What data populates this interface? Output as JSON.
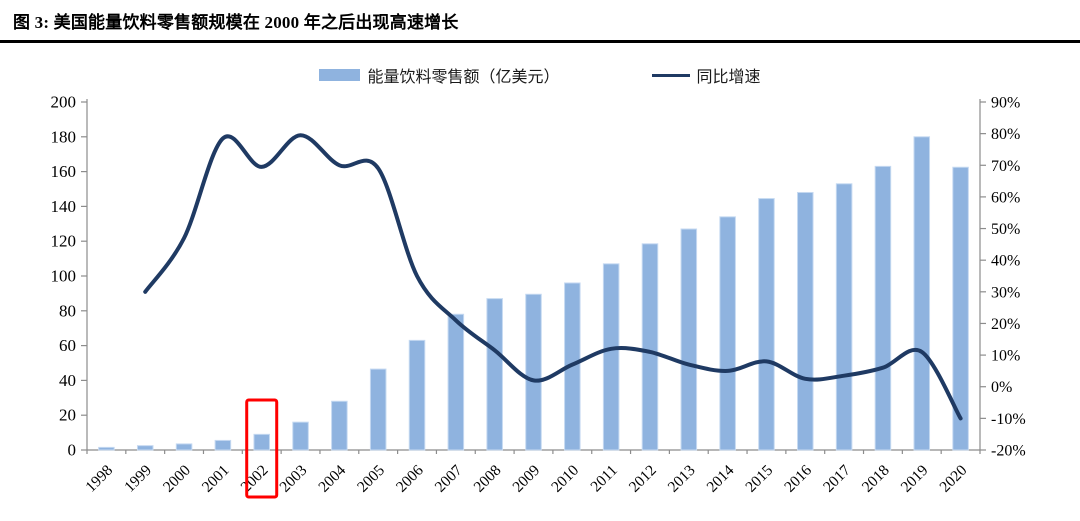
{
  "figure": {
    "title": "图 3:  美国能量饮料零售额规模在 2000 年之后出现高速增长"
  },
  "legend": {
    "bar_label": "能量饮料零售额（亿美元）",
    "line_label": "同比增速"
  },
  "colors": {
    "bar_fill": "#8FB3DF",
    "bar_edge": "#C5D9F1",
    "line": "#1F3A63",
    "axis": "#8C8C8C",
    "highlight_box": "#FF0000",
    "title_rule": "#000000"
  },
  "chart_data": {
    "type": "bar",
    "title": "",
    "categories": [
      "1998",
      "1999",
      "2000",
      "2001",
      "2002",
      "2003",
      "2004",
      "2005",
      "2006",
      "2007",
      "2008",
      "2009",
      "2010",
      "2011",
      "2012",
      "2013",
      "2014",
      "2015",
      "2016",
      "2017",
      "2018",
      "2019",
      "2020"
    ],
    "series": [
      {
        "name": "能量饮料零售额（亿美元）",
        "type": "bar",
        "axis": "left",
        "values": [
          1.5,
          2.5,
          3.5,
          5.5,
          9,
          16,
          28,
          46.5,
          63,
          78,
          87,
          89.5,
          96,
          107,
          118.5,
          127,
          134,
          144.5,
          148,
          153,
          163,
          180,
          162.5
        ]
      },
      {
        "name": "同比增速",
        "type": "line",
        "axis": "right",
        "values": [
          null,
          30,
          47,
          78.5,
          69.5,
          79.5,
          70,
          69,
          35,
          21,
          11.5,
          2,
          7,
          12,
          11,
          7,
          5,
          8,
          2.5,
          3.5,
          6,
          11,
          -10
        ]
      }
    ],
    "left_axis": {
      "min": 0,
      "max": 200,
      "ticks": [
        0,
        20,
        40,
        60,
        80,
        100,
        120,
        140,
        160,
        180,
        200
      ]
    },
    "right_axis": {
      "min": -20,
      "max": 90,
      "ticks": [
        "-20%",
        "-10%",
        "0%",
        "10%",
        "20%",
        "30%",
        "40%",
        "50%",
        "60%",
        "70%",
        "80%",
        "90%"
      ]
    },
    "grid": false,
    "legend_position": "top",
    "highlight": {
      "category": "2002",
      "note": "red box around 2002 bar and label"
    }
  }
}
